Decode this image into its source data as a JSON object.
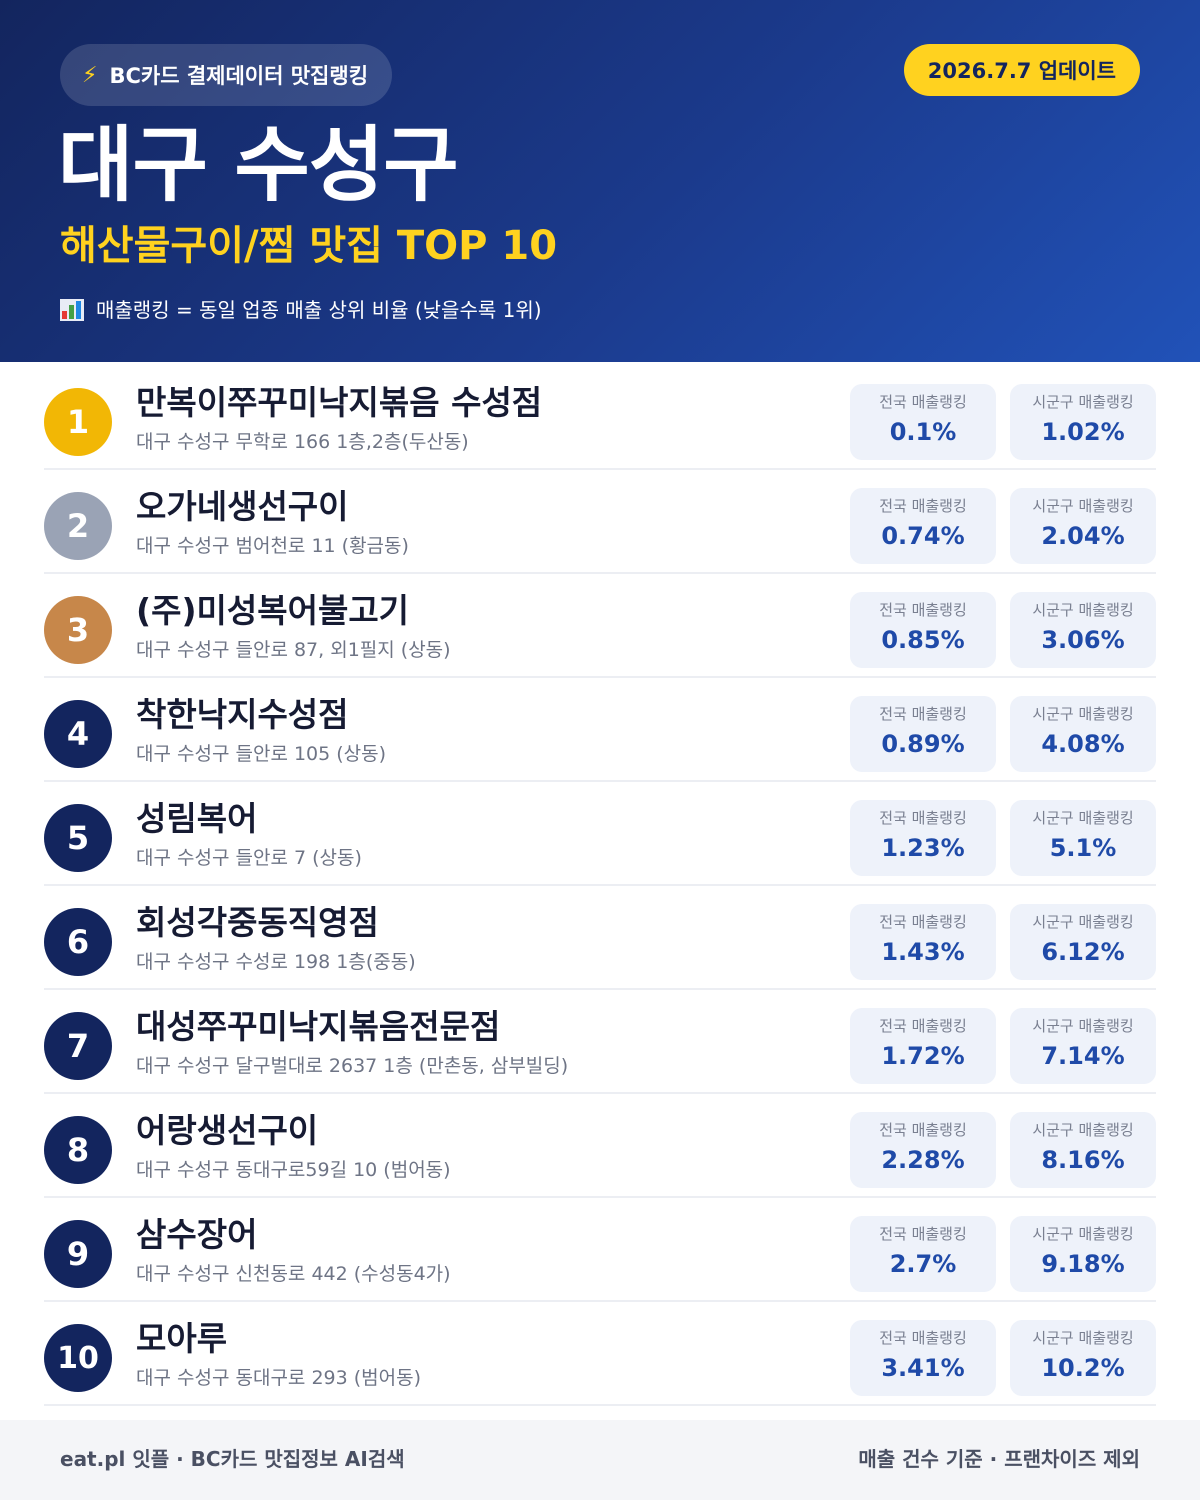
{
  "header": {
    "badge_icon": "lightning-bolt-icon",
    "badge_label": "BC카드 결제데이터 맛집랭킹",
    "update_label": "2026.7.7 업데이트",
    "title": "대구 수성구",
    "subtitle": "해산물구이/찜 맛집 TOP 10",
    "note_icon": "bar-chart-icon",
    "note": "매출랭킹 = 동일 업종 매출 상위 비율 (낮을수록 1위)"
  },
  "labels": {
    "national": "전국 매출랭킹",
    "regional": "시군구 매출랭킹"
  },
  "restaurants": [
    {
      "rank": "1",
      "name": "만복이쭈꾸미낙지볶음 수성점",
      "address": "대구 수성구 무학로 166 1층,2층(두산동)",
      "national": "0.1%",
      "regional": "1.02%"
    },
    {
      "rank": "2",
      "name": "오가네생선구이",
      "address": "대구 수성구 범어천로 11 (황금동)",
      "national": "0.74%",
      "regional": "2.04%"
    },
    {
      "rank": "3",
      "name": "(주)미성복어불고기",
      "address": "대구 수성구 들안로 87, 외1필지 (상동)",
      "national": "0.85%",
      "regional": "3.06%"
    },
    {
      "rank": "4",
      "name": "착한낙지수성점",
      "address": "대구 수성구 들안로 105 (상동)",
      "national": "0.89%",
      "regional": "4.08%"
    },
    {
      "rank": "5",
      "name": "성림복어",
      "address": "대구 수성구 들안로 7 (상동)",
      "national": "1.23%",
      "regional": "5.1%"
    },
    {
      "rank": "6",
      "name": "회성각중동직영점",
      "address": "대구 수성구 수성로 198 1층(중동)",
      "national": "1.43%",
      "regional": "6.12%"
    },
    {
      "rank": "7",
      "name": "대성쭈꾸미낙지볶음전문점",
      "address": "대구 수성구 달구벌대로 2637 1층 (만촌동, 삼부빌딩)",
      "national": "1.72%",
      "regional": "7.14%"
    },
    {
      "rank": "8",
      "name": "어랑생선구이",
      "address": "대구 수성구 동대구로59길 10 (범어동)",
      "national": "2.28%",
      "regional": "8.16%"
    },
    {
      "rank": "9",
      "name": "삼수장어",
      "address": "대구 수성구 신천동로 442 (수성동4가)",
      "national": "2.7%",
      "regional": "9.18%"
    },
    {
      "rank": "10",
      "name": "모아루",
      "address": "대구 수성구 동대구로 293 (범어동)",
      "national": "3.41%",
      "regional": "10.2%"
    }
  ],
  "footer": {
    "left": "eat.pl 잇플 · BC카드 맛집정보 AI검색",
    "right": "매출 건수 기준 · 프랜차이즈 제외"
  }
}
